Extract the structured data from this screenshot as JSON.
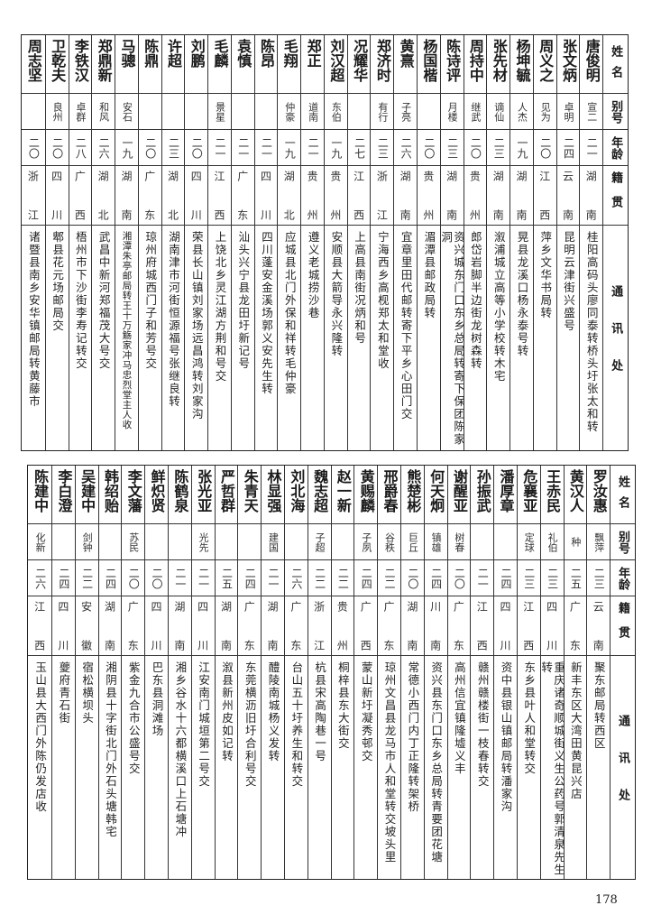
{
  "headers": {
    "name": "姓名",
    "alias": "别号",
    "age": "年龄",
    "native": "籍贯",
    "address": "通讯处"
  },
  "top_table": [
    {
      "name": "唐俊明",
      "alias": "宣二",
      "age": "二一",
      "native": "湖南",
      "address": "桂阳高码头廖同泰转桥头圩张太和转"
    },
    {
      "name": "张文炳",
      "alias": "卓明",
      "age": "二四",
      "native": "云南",
      "address": "昆明云津街兴盛号"
    },
    {
      "name": "周义之",
      "alias": "见为",
      "age": "二〇",
      "native": "江西",
      "address": "萍乡文华书局转"
    },
    {
      "name": "杨坤毓",
      "alias": "人杰",
      "age": "一九",
      "native": "湖南",
      "address": "晃县龙溪口杨永泰号转"
    },
    {
      "name": "张先材",
      "alias": "谪仙",
      "age": "二三",
      "native": "湖南",
      "address": "溆浦城立高等小学校转木宅"
    },
    {
      "name": "周持中",
      "alias": "继武",
      "age": "二〇",
      "native": "贵州",
      "address": "郎岱岩脚半边街龙树森转"
    },
    {
      "name": "陈诗评",
      "alias": "月楼",
      "age": "二三",
      "native": "湖南",
      "address": "资兴城东门口东乡总局转寄下保团陈家洞"
    },
    {
      "name": "杨国楷",
      "alias": "",
      "age": "二〇",
      "native": "贵州",
      "address": "湄潭县邮政局转"
    },
    {
      "name": "黄熹",
      "alias": "子亮",
      "age": "二六",
      "native": "湖南",
      "address": "宜章里田代邮转寄下平乡心田门交"
    },
    {
      "name": "郑济时",
      "alias": "有行",
      "age": "二三",
      "native": "浙江",
      "address": "宁海西乡高枧郑太和堂收"
    },
    {
      "name": "况耀华",
      "alias": "",
      "age": "二七",
      "native": "江西",
      "address": "上高县南街况炳和号"
    },
    {
      "name": "刘汉超",
      "alias": "东伯",
      "age": "一九",
      "native": "贵州",
      "address": "安顺县大箭导永兴隆转"
    },
    {
      "name": "郑正",
      "alias": "道南",
      "age": "二一",
      "native": "贵州",
      "address": "遵义老城捞沙巷"
    },
    {
      "name": "毛翔",
      "alias": "仲豪",
      "age": "一九",
      "native": "湖北",
      "address": "应城县北门外保和祥转毛仲豪"
    },
    {
      "name": "陈昂",
      "alias": "",
      "age": "二一",
      "native": "四川",
      "address": "四川蓬安金溪场郭义安先生转"
    },
    {
      "name": "袁慎",
      "alias": "",
      "age": "二一",
      "native": "广东",
      "address": "汕头兴宁县龙田圩新记号"
    },
    {
      "name": "毛麟",
      "alias": "景星",
      "age": "二一",
      "native": "江西",
      "address": "上饶北乡灵江湖方荆和号交"
    },
    {
      "name": "刘鹏",
      "alias": "",
      "age": "二〇",
      "native": "四川",
      "address": "荣县长山镇刘家场远昌鸿转刘家沟"
    },
    {
      "name": "许超",
      "alias": "",
      "age": "二三",
      "native": "湖北",
      "address": "湖南津市河街恒源福号张继良转"
    },
    {
      "name": "陈鼎",
      "alias": "",
      "age": "二〇",
      "native": "广东",
      "address": "琼州府城西门子和芳号交"
    },
    {
      "name": "马骢",
      "alias": "安石",
      "age": "一九",
      "native": "湖南",
      "address": "湘潭朱亭邮局转王十万觞家冲马忠烈堂主人收"
    },
    {
      "name": "郑鼎新",
      "alias": "和风",
      "age": "二六",
      "native": "湖北",
      "address": "武昌中新河郑福茂大号交"
    },
    {
      "name": "李铁汉",
      "alias": "卓群",
      "age": "二八",
      "native": "广西",
      "address": "梧州市下沙街李寿记转交"
    },
    {
      "name": "卫乾夫",
      "alias": "良州",
      "age": "二〇",
      "native": "四川",
      "address": "郫县花元场邮局交"
    },
    {
      "name": "周志坚",
      "alias": "",
      "age": "二〇",
      "native": "浙江",
      "address": "诸暨县南乡安华镇邮局转黄藤市"
    }
  ],
  "bottom_table": [
    {
      "name": "罗汝惠",
      "alias": "飘萍",
      "age": "二三",
      "native": "云南",
      "address": "聚东邮局转西区"
    },
    {
      "name": "黄汉人",
      "alias": "种",
      "age": "二五",
      "native": "广东",
      "address": "新丰东区大湾田黄昆兴店"
    },
    {
      "name": "王赤民",
      "alias": "礼伯",
      "age": "二三",
      "native": "四川",
      "address": "重庆诸奇顺城街义生公药号郭清泉先生转"
    },
    {
      "name": "危襄亚",
      "alias": "定球",
      "age": "二三",
      "native": "江西",
      "address": "东乡县叶人和堂转交"
    },
    {
      "name": "潘厚章",
      "alias": "",
      "age": "二四",
      "native": "四川",
      "address": "资中县银山镇邮局转潘家沟"
    },
    {
      "name": "孙振武",
      "alias": "",
      "age": "二一",
      "native": "江西",
      "address": "赣州赣楼街一枝春转交"
    },
    {
      "name": "谢醒亚",
      "alias": "树春",
      "age": "二〇",
      "native": "广东",
      "address": "高州信宜镇隆墟义丰"
    },
    {
      "name": "何天炯",
      "alias": "镇雄",
      "age": "二四",
      "native": "川南",
      "address": "资兴县东门口东乡总局转青要团花塘"
    },
    {
      "name": "熊楚彬",
      "alias": "巨丘",
      "age": "二〇",
      "native": "湖南",
      "address": "常德小西门内丁正隆转架桥"
    },
    {
      "name": "邢爵春",
      "alias": "谷秩",
      "age": "二二",
      "native": "广东",
      "address": "琼州文昌县龙马市人和堂转交坡头里"
    },
    {
      "name": "黄赐麟",
      "alias": "子夙",
      "age": "二四",
      "native": "广西",
      "address": "蒙山新圩凝秀邨交"
    },
    {
      "name": "赵一新",
      "alias": "",
      "age": "二二",
      "native": "贵州",
      "address": "桐梓县东大街交"
    },
    {
      "name": "魏志超",
      "alias": "子超",
      "age": "二二",
      "native": "浙江",
      "address": "杭县宋高陶巷一号"
    },
    {
      "name": "刘北海",
      "alias": "",
      "age": "二六",
      "native": "广东",
      "address": "台山五十圩养生和转交"
    },
    {
      "name": "林显强",
      "alias": "建国",
      "age": "二一",
      "native": "湖南",
      "address": "醴陵南城杨义发转"
    },
    {
      "name": "朱青天",
      "alias": "",
      "age": "二四",
      "native": "广东",
      "address": "东莞横沥旧圩合利号交"
    },
    {
      "name": "严哲群",
      "alias": "",
      "age": "二五",
      "native": "湖南",
      "address": "溆县新州皮如记转"
    },
    {
      "name": "张光亚",
      "alias": "光先",
      "age": "二一",
      "native": "四川",
      "address": "江安南门城垣第二号交"
    },
    {
      "name": "陈鹤泉",
      "alias": "",
      "age": "二一",
      "native": "湖南",
      "address": "湘乡谷水十六都横溪口上石塘冲"
    },
    {
      "name": "鲜炽贤",
      "alias": "",
      "age": "二〇",
      "native": "四川",
      "address": "巴东县洞滩场"
    },
    {
      "name": "李文藩",
      "alias": "苏民",
      "age": "二〇",
      "native": "广东",
      "address": "紫金九合市公盛号交"
    },
    {
      "name": "韩绍贻",
      "alias": "",
      "age": "二四",
      "native": "湖南",
      "address": "湘阴县十字街北门外石头塘韩宅"
    },
    {
      "name": "吴建中",
      "alias": "剑钟",
      "age": "二二",
      "native": "安徽",
      "address": "宿松横坝头"
    },
    {
      "name": "李白澄",
      "alias": "",
      "age": "二四",
      "native": "四川",
      "address": "夔府青石街"
    },
    {
      "name": "陈建中",
      "alias": "化新",
      "age": "二六",
      "native": "江西",
      "address": "玉山县大西门外陈仍发店收"
    }
  ],
  "page_number": "178"
}
